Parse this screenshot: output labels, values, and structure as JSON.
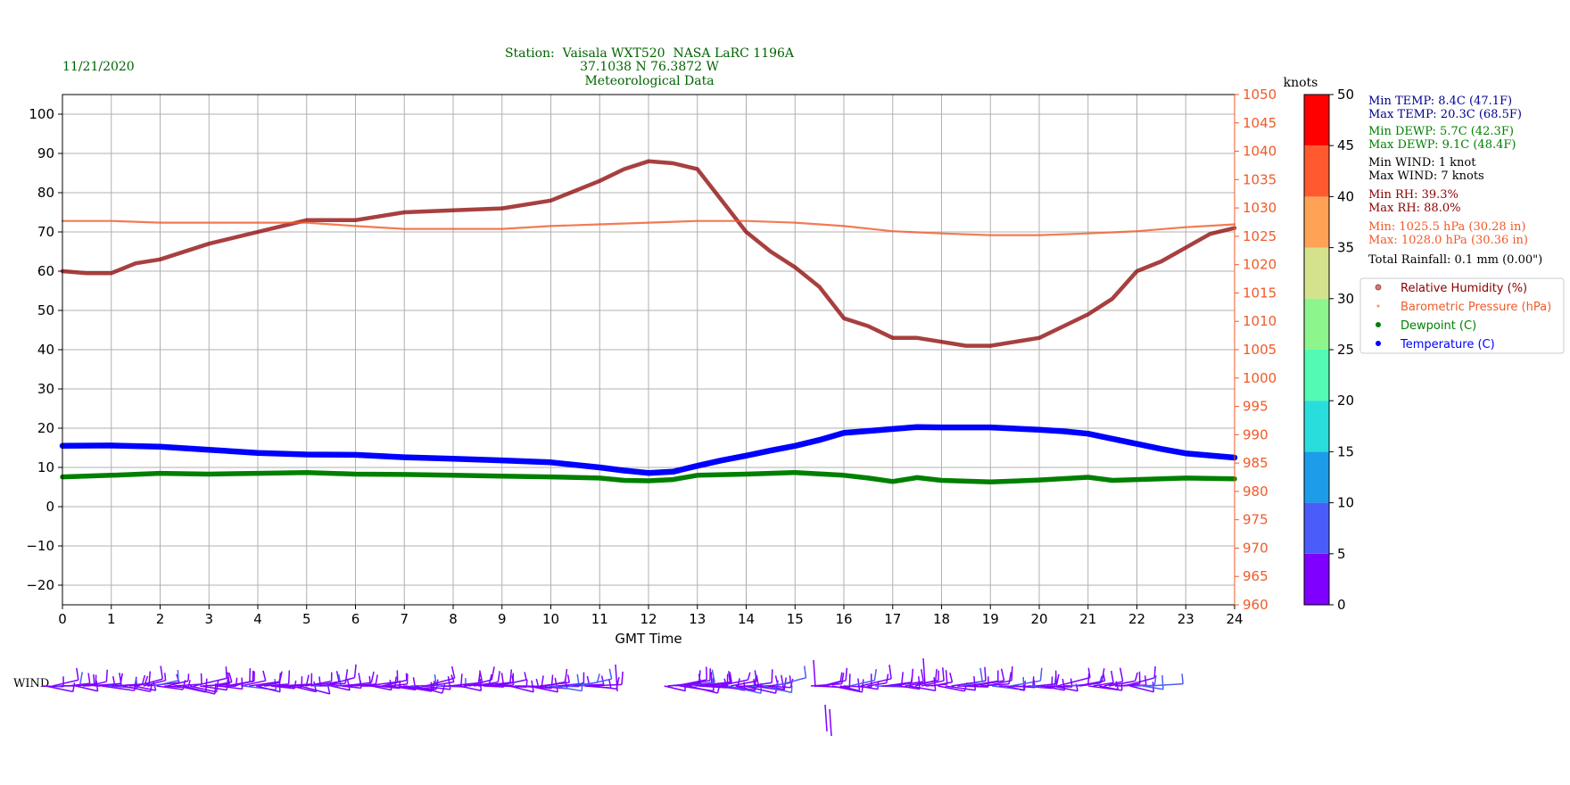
{
  "header": {
    "date": "11/21/2020",
    "station_line1": "Station:  Vaisala WXT520  NASA LaRC 1196A",
    "station_line2": "37.1038 N 76.3872 W",
    "station_line3": "Meteorological Data"
  },
  "stats": {
    "min_temp": "Min TEMP: 8.4C (47.1F)",
    "max_temp": "Max TEMP: 20.3C (68.5F)",
    "min_dewp": "Min DEWP: 5.7C (42.3F)",
    "max_dewp": "Max DEWP: 9.1C (48.4F)",
    "min_wind": "Min WIND: 1 knot",
    "max_wind": "Max WIND: 7 knots",
    "min_rh": "Min RH: 39.3%",
    "max_rh": "Max RH: 88.0%",
    "min_pres": "Min: 1025.5 hPa (30.28 in)",
    "max_pres": "Max: 1028.0 hPa (30.36 in)",
    "rainfall": "Total Rainfall: 0.1 mm (0.00\")"
  },
  "colors": {
    "rh": "#8b0000",
    "pressure": "#f05a28",
    "dewpoint": "#008000",
    "temperature": "#0000ff",
    "date_title": "#006400",
    "temp_stats": "#00008b",
    "wind_stats": "#000000",
    "wind_barb": "#7f00ff"
  },
  "colorbar": {
    "label": "knots",
    "ticks": [
      "0",
      "5",
      "10",
      "15",
      "20",
      "25",
      "30",
      "35",
      "40",
      "45",
      "50"
    ],
    "colors": [
      "#7f00ff",
      "#4a5cfa",
      "#1c9ce9",
      "#2adddd",
      "#52fab4",
      "#8cf58c",
      "#d4e28c",
      "#ffa256",
      "#ff5a2d",
      "#ff0000"
    ]
  },
  "wind_label": "WIND",
  "chart_data": {
    "type": "line",
    "xlabel": "GMT Time",
    "xlim": [
      0,
      24
    ],
    "x_ticks": [
      "0",
      "1",
      "2",
      "3",
      "4",
      "5",
      "6",
      "7",
      "8",
      "9",
      "10",
      "11",
      "12",
      "13",
      "14",
      "15",
      "16",
      "17",
      "18",
      "19",
      "20",
      "21",
      "22",
      "23",
      "24"
    ],
    "ylim_left": [
      -25,
      105
    ],
    "y_ticks_left": [
      "−20",
      "−10",
      "0",
      "10",
      "20",
      "30",
      "40",
      "50",
      "60",
      "70",
      "80",
      "90",
      "100"
    ],
    "ylim_right": [
      960,
      1050
    ],
    "y_ticks_right": [
      "960",
      "965",
      "970",
      "975",
      "980",
      "985",
      "990",
      "995",
      "1000",
      "1005",
      "1010",
      "1015",
      "1020",
      "1025",
      "1030",
      "1035",
      "1040",
      "1045",
      "1050"
    ],
    "grid": true,
    "legend": {
      "placement": "right",
      "entries": [
        "Relative Humidity (%)",
        "Barometric Pressure (hPa)",
        "Dewpoint (C)",
        "Temperature (C)"
      ]
    },
    "series": [
      {
        "name": "Relative Humidity (%)",
        "axis": "left",
        "x": [
          0,
          0.5,
          1,
          1.5,
          2,
          3,
          4,
          5,
          6,
          7,
          8,
          9,
          10,
          11,
          11.5,
          12,
          12.5,
          13,
          13.5,
          14,
          14.5,
          15,
          15.5,
          16,
          16.5,
          17,
          17.5,
          18,
          18.5,
          19,
          19.5,
          20,
          20.5,
          21,
          21.5,
          22,
          22.5,
          23,
          23.5,
          24
        ],
        "y": [
          60,
          59.5,
          59.5,
          62,
          63,
          67,
          70,
          73,
          73,
          75,
          75.5,
          76,
          78,
          83,
          86,
          88,
          87.5,
          86,
          78,
          70,
          65,
          61,
          56,
          48,
          46,
          43,
          43,
          42,
          41,
          41,
          42,
          43,
          46,
          49,
          53,
          60,
          62.5,
          66,
          69.5,
          71
        ]
      },
      {
        "name": "Barometric Pressure (hPa)",
        "axis": "right",
        "x": [
          0,
          1,
          2,
          3,
          4,
          5,
          6,
          7,
          8,
          9,
          10,
          11,
          12,
          13,
          14,
          15,
          16,
          17,
          18,
          19,
          20,
          21,
          22,
          23,
          24
        ],
        "y": [
          1027.7,
          1027.7,
          1027.4,
          1027.4,
          1027.4,
          1027.4,
          1026.8,
          1026.3,
          1026.3,
          1026.3,
          1026.8,
          1027.1,
          1027.4,
          1027.7,
          1027.7,
          1027.4,
          1026.8,
          1025.9,
          1025.5,
          1025.2,
          1025.2,
          1025.5,
          1025.9,
          1026.6,
          1027.1
        ]
      },
      {
        "name": "Dewpoint (C)",
        "axis": "left",
        "x": [
          0,
          1,
          2,
          3,
          4,
          5,
          6,
          7,
          8,
          9,
          10,
          11,
          11.5,
          12,
          12.5,
          13,
          14,
          15,
          16,
          16.5,
          17,
          17.5,
          18,
          19,
          20,
          21,
          21.5,
          22,
          23,
          24
        ],
        "y": [
          7.6,
          8,
          8.5,
          8.3,
          8.5,
          8.7,
          8.3,
          8.2,
          8,
          7.8,
          7.6,
          7.3,
          6.7,
          6.6,
          6.9,
          8,
          8.3,
          8.7,
          8,
          7.3,
          6.4,
          7.4,
          6.7,
          6.3,
          6.8,
          7.5,
          6.7,
          6.9,
          7.3,
          7.1
        ]
      },
      {
        "name": "Temperature (C)",
        "axis": "left",
        "x": [
          0,
          1,
          2,
          3,
          4,
          5,
          6,
          7,
          8,
          9,
          10,
          11,
          11.5,
          12,
          12.5,
          13,
          13.5,
          14,
          14.5,
          15,
          15.5,
          16,
          16.5,
          17,
          17.5,
          18,
          19,
          20,
          20.5,
          21,
          21.5,
          22,
          22.5,
          23,
          24
        ],
        "y": [
          15.5,
          15.6,
          15.3,
          14.5,
          13.7,
          13.3,
          13.2,
          12.6,
          12.2,
          11.8,
          11.3,
          10,
          9.2,
          8.6,
          8.9,
          10.4,
          11.8,
          13,
          14.3,
          15.5,
          17,
          18.8,
          19.3,
          19.8,
          20.3,
          20.2,
          20.2,
          19.6,
          19.2,
          18.6,
          17.3,
          16,
          14.7,
          13.6,
          12.5
        ]
      }
    ]
  }
}
